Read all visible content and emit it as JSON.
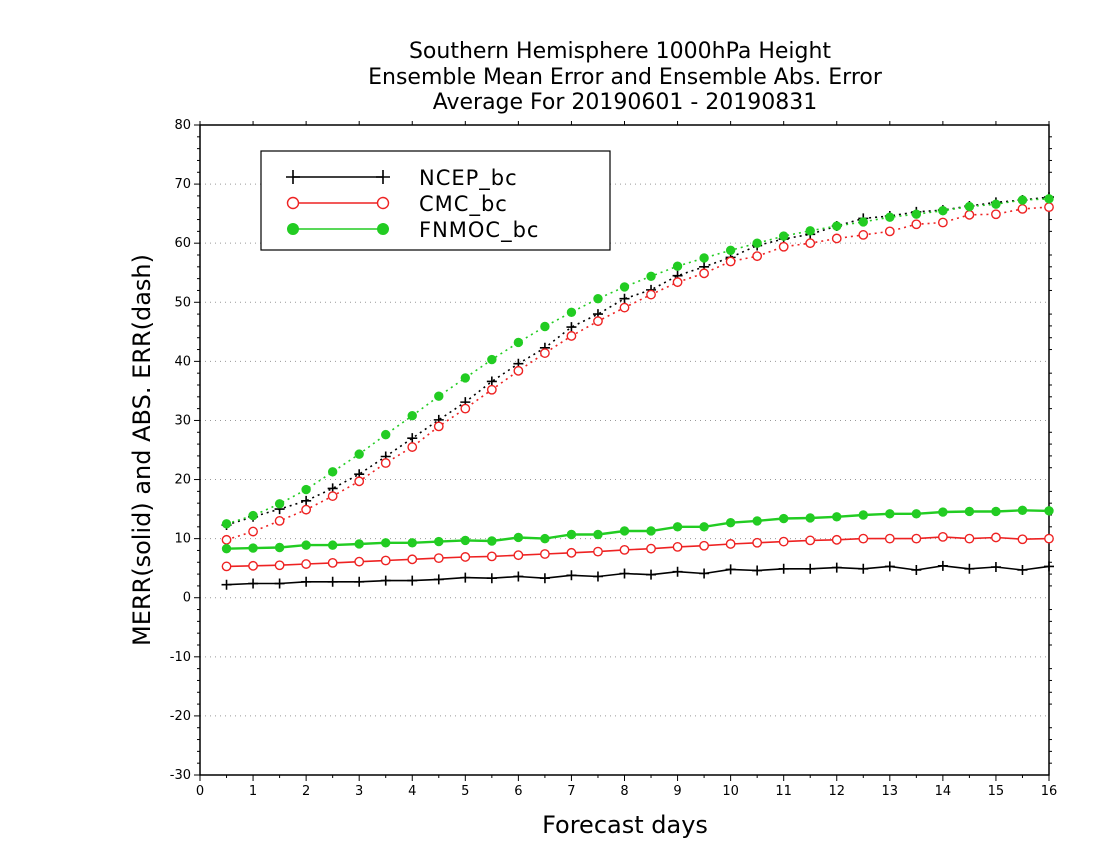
{
  "chart_data": {
    "type": "line",
    "title_lines": [
      "Southern Hemisphere 1000hPa Height",
      "Ensemble Mean Error and Ensemble Abs. Error",
      "Average For 20190601 - 20190831"
    ],
    "xlabel": "Forecast days",
    "ylabel": "MERR(solid) and ABS. ERR(dash)",
    "xlim": [
      0,
      16
    ],
    "ylim": [
      -30,
      80
    ],
    "x_ticks": [
      0,
      1,
      2,
      3,
      4,
      5,
      6,
      7,
      8,
      9,
      10,
      11,
      12,
      13,
      14,
      15,
      16
    ],
    "y_ticks": [
      -30,
      -20,
      -10,
      0,
      10,
      20,
      30,
      40,
      50,
      60,
      70,
      80
    ],
    "grid": "horizontal dotted",
    "legend_position": "top-left",
    "x": [
      0.5,
      1,
      1.5,
      2,
      2.5,
      3,
      3.5,
      4,
      4.5,
      5,
      5.5,
      6,
      6.5,
      7,
      7.5,
      8,
      8.5,
      9,
      9.5,
      10,
      10.5,
      11,
      11.5,
      12,
      12.5,
      13,
      13.5,
      14,
      14.5,
      15,
      15.5,
      16
    ],
    "series": [
      {
        "name": "NCEP_bc",
        "color": "#000000",
        "marker": "plus",
        "merr": [
          2.2,
          2.4,
          2.4,
          2.7,
          2.7,
          2.7,
          2.9,
          2.9,
          3.1,
          3.4,
          3.3,
          3.6,
          3.3,
          3.8,
          3.6,
          4.1,
          3.9,
          4.4,
          4.1,
          4.8,
          4.6,
          4.9,
          4.9,
          5.1,
          4.9,
          5.3,
          4.7,
          5.4,
          4.9,
          5.2,
          4.7,
          5.3
        ],
        "abs_err": [
          12.3,
          13.7,
          15.0,
          16.4,
          18.5,
          20.9,
          23.9,
          27.0,
          30.1,
          33.1,
          36.6,
          39.6,
          42.3,
          45.8,
          48.0,
          50.6,
          52.1,
          54.5,
          56.0,
          57.6,
          59.6,
          60.7,
          61.5,
          62.9,
          64.2,
          64.6,
          65.3,
          65.6,
          66.3,
          66.9,
          67.3,
          67.8
        ]
      },
      {
        "name": "CMC_bc",
        "color": "#ee2222",
        "marker": "open-circle",
        "merr": [
          5.3,
          5.4,
          5.5,
          5.7,
          5.9,
          6.1,
          6.3,
          6.5,
          6.7,
          6.9,
          7.0,
          7.2,
          7.4,
          7.6,
          7.8,
          8.1,
          8.3,
          8.6,
          8.8,
          9.1,
          9.3,
          9.5,
          9.7,
          9.8,
          10.0,
          10.0,
          10.0,
          10.3,
          10.0,
          10.2,
          9.9,
          10.0
        ],
        "abs_err": [
          9.8,
          11.2,
          13.0,
          14.9,
          17.2,
          19.7,
          22.8,
          25.5,
          29.0,
          32.0,
          35.2,
          38.4,
          41.4,
          44.3,
          46.8,
          49.1,
          51.3,
          53.4,
          54.9,
          56.9,
          57.8,
          59.4,
          60.0,
          60.8,
          61.4,
          62.0,
          63.2,
          63.5,
          64.8,
          64.9,
          65.8,
          66.1
        ]
      },
      {
        "name": "FNMOC_bc",
        "color": "#22cc22",
        "marker": "filled-circle",
        "merr": [
          8.3,
          8.4,
          8.5,
          8.9,
          8.9,
          9.1,
          9.3,
          9.3,
          9.5,
          9.7,
          9.6,
          10.2,
          10.0,
          10.7,
          10.7,
          11.3,
          11.3,
          12.0,
          12.0,
          12.7,
          13.0,
          13.4,
          13.5,
          13.7,
          14.0,
          14.2,
          14.2,
          14.5,
          14.6,
          14.6,
          14.8,
          14.7
        ],
        "abs_err": [
          12.5,
          13.9,
          15.9,
          18.3,
          21.3,
          24.3,
          27.6,
          30.8,
          34.1,
          37.2,
          40.3,
          43.2,
          45.9,
          48.3,
          50.6,
          52.6,
          54.4,
          56.1,
          57.5,
          58.8,
          60.0,
          61.2,
          62.1,
          62.9,
          63.6,
          64.4,
          64.9,
          65.5,
          66.2,
          66.6,
          67.3,
          67.5
        ]
      }
    ]
  }
}
